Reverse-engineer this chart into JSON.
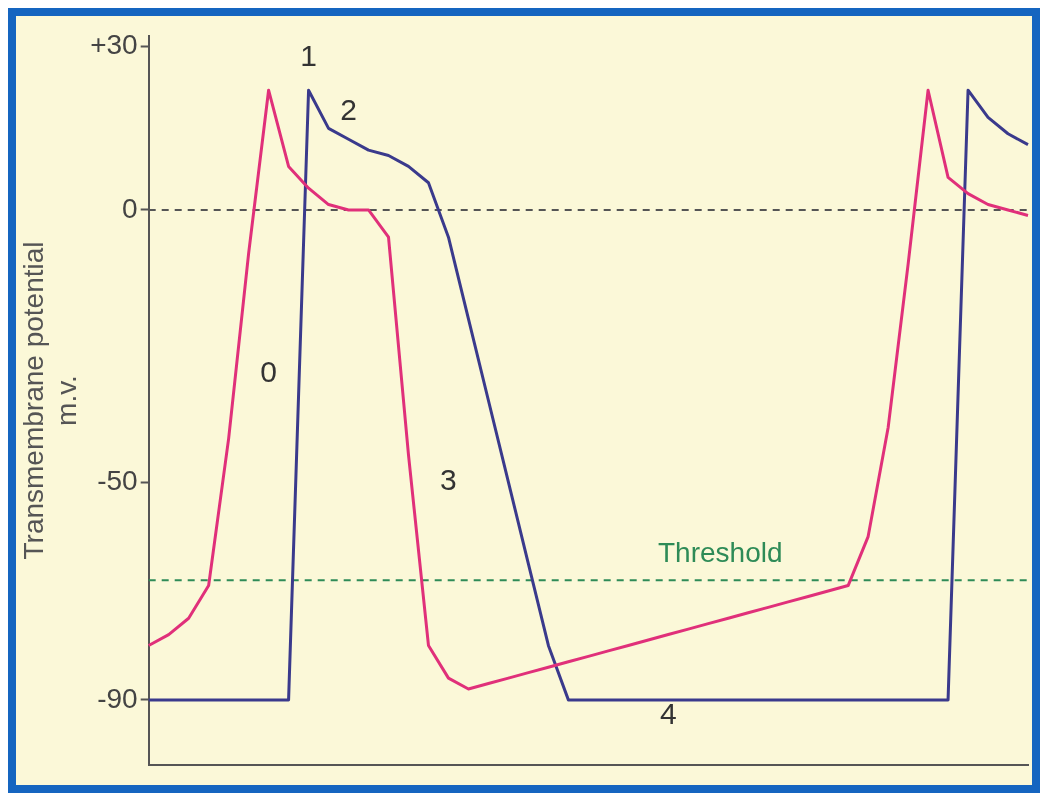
{
  "chart_data": {
    "type": "line",
    "ylabel": "Transmembrane potential\nm.v.",
    "categories": [
      null,
      null,
      null,
      null,
      null,
      null,
      null,
      null,
      null,
      null,
      null,
      null,
      null,
      null,
      null,
      null,
      null,
      null,
      null,
      null,
      null,
      null,
      null,
      null,
      null,
      null,
      null,
      null,
      null,
      null,
      null,
      null,
      null,
      null,
      null,
      null,
      null,
      null,
      null,
      null,
      null,
      null,
      null,
      null,
      null
    ],
    "series": [
      {
        "color": "#e0307a",
        "values": [
          -80,
          -78,
          -75,
          -69,
          -42,
          -8,
          22,
          8,
          4,
          1,
          0,
          0,
          -5,
          -45,
          -80,
          -86,
          -88,
          -87,
          -86,
          -85,
          -84,
          -83,
          -82,
          -81,
          -80,
          -79,
          -78,
          -77,
          -76,
          -75,
          -74,
          -73,
          -72,
          -71,
          -70,
          -69,
          -60,
          -40,
          -10,
          22,
          6,
          3,
          1,
          0,
          -1
        ]
      },
      {
        "color": "#3a3a8c",
        "values": [
          -90,
          -90,
          -90,
          -90,
          -90,
          -90,
          -90,
          -90,
          22,
          15,
          13,
          11,
          10,
          8,
          5,
          -5,
          -20,
          -35,
          -50,
          -65,
          -80,
          -90,
          -90,
          -90,
          -90,
          -90,
          -90,
          -90,
          -90,
          -90,
          -90,
          -90,
          -90,
          -90,
          -90,
          -90,
          -90,
          -90,
          -90,
          -90,
          -90,
          22,
          17,
          14,
          12
        ]
      }
    ],
    "ylim": [
      -102,
      32
    ],
    "yticks": [
      {
        "value": 30,
        "label": "+30"
      },
      0,
      -50,
      -90
    ],
    "tick_labels": "y",
    "grid": false,
    "legend": false,
    "marker": "none",
    "line_style": "solid",
    "ref_lines": [
      {
        "axis": "y",
        "value": 0,
        "label": null,
        "color": "#555555",
        "line_style": "dashed"
      },
      {
        "axis": "y",
        "value": -68,
        "label": "Threshold",
        "color": "#2e8b57",
        "line_style": "dashed"
      }
    ],
    "annotations": [
      "0",
      "1",
      "2",
      "3",
      "4"
    ]
  }
}
